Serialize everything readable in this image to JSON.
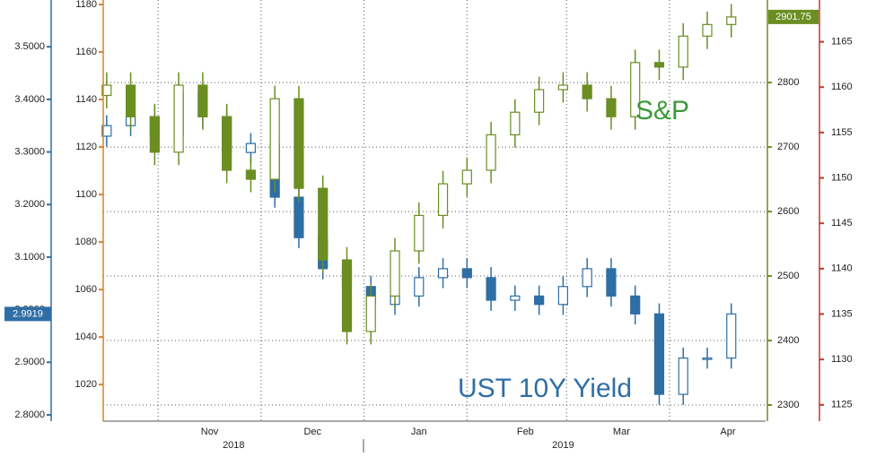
{
  "chart_data": {
    "type": "candlestick",
    "xlim": [
      0,
      193
    ],
    "xticks": [
      {
        "value": 31,
        "label": "Nov"
      },
      {
        "value": 61,
        "label": "Dec"
      },
      {
        "value": 92,
        "label": "Jan"
      },
      {
        "value": 123,
        "label": "Feb"
      },
      {
        "value": 151,
        "label": "Mar"
      },
      {
        "value": 182,
        "label": "Apr"
      }
    ],
    "year_ticks": [
      {
        "value": 38,
        "label": "2018"
      },
      {
        "value": 134,
        "label": "2019"
      }
    ],
    "xgrid": [
      16,
      46,
      76,
      106,
      135,
      165
    ],
    "ylim": [
      2.788,
      3.589
    ],
    "yticks": [
      {
        "value": 2.8,
        "label": "2.8000"
      },
      {
        "value": 2.9,
        "label": "2.9000"
      },
      {
        "value": 3.0,
        "label": "3.0000"
      },
      {
        "value": 3.1,
        "label": "3.1000"
      },
      {
        "value": 3.2,
        "label": "3.2000"
      },
      {
        "value": 3.3,
        "label": "3.3000"
      },
      {
        "value": 3.4,
        "label": "3.4000"
      },
      {
        "value": 3.5,
        "label": "3.5000"
      }
    ],
    "y2lim": [
      2275,
      2928
    ],
    "y2ticks": [
      2300,
      2400,
      2500,
      2600,
      2700,
      2800
    ],
    "y3lim": [
      1004.6,
      1181.9
    ],
    "y3ticks": [
      1020,
      1040,
      1060,
      1080,
      1100,
      1120,
      1140,
      1160,
      1180
    ],
    "y4lim": [
      1123.2,
      1169.6
    ],
    "y4ticks": [
      1125,
      1130,
      1135,
      1140,
      1145,
      1150,
      1155,
      1160,
      1165
    ],
    "grid": true,
    "x": [
      1,
      8,
      15,
      22,
      29,
      36,
      43,
      50,
      57,
      64,
      71,
      78,
      85,
      92,
      99,
      106,
      113,
      120,
      127,
      134,
      141,
      148,
      155,
      162,
      169,
      176,
      183
    ],
    "series": [
      {
        "name": "UST 10Y Yield",
        "color": "#2f6ea5",
        "axis": "y",
        "last_value": 2.9919,
        "open": [
          3.33,
          3.35,
          3.367,
          3.333,
          3.41,
          3.367,
          3.299,
          3.316,
          3.214,
          3.137,
          3.078,
          3.044,
          3.01,
          3.026,
          3.061,
          3.078,
          3.061,
          3.018,
          3.026,
          3.01,
          3.044,
          3.078,
          3.026,
          2.992,
          2.839,
          2.908,
          2.908
        ],
        "high": [
          3.37,
          3.387,
          3.387,
          3.43,
          3.43,
          3.387,
          3.336,
          3.336,
          3.234,
          3.157,
          3.098,
          3.064,
          3.046,
          3.081,
          3.098,
          3.098,
          3.081,
          3.046,
          3.046,
          3.064,
          3.098,
          3.098,
          3.046,
          3.012,
          2.928,
          2.928,
          3.012
        ],
        "low": [
          3.31,
          3.33,
          3.313,
          3.313,
          3.347,
          3.279,
          3.279,
          3.194,
          3.117,
          3.058,
          3.024,
          2.99,
          2.99,
          3.006,
          3.041,
          3.041,
          2.998,
          2.998,
          2.99,
          2.99,
          3.024,
          3.006,
          2.972,
          2.819,
          2.819,
          2.888,
          2.888
        ],
        "close": [
          3.35,
          3.367,
          3.333,
          3.41,
          3.367,
          3.299,
          3.316,
          3.214,
          3.137,
          3.078,
          3.044,
          3.01,
          3.026,
          3.061,
          3.078,
          3.061,
          3.018,
          3.026,
          3.01,
          3.044,
          3.078,
          3.026,
          2.992,
          2.839,
          2.908,
          2.908,
          2.9919
        ]
      },
      {
        "name": "S&P",
        "color": "#6b8e23",
        "axis": "y2",
        "last_value": 2901.75,
        "open": [
          2780,
          2796,
          2747,
          2692,
          2796,
          2747,
          2664,
          2650,
          2775,
          2636,
          2525,
          2414,
          2469,
          2539,
          2594,
          2643,
          2664,
          2719,
          2754,
          2789,
          2796,
          2775,
          2747,
          2831,
          2824,
          2872,
          2890
        ],
        "high": [
          2816,
          2816,
          2767,
          2816,
          2816,
          2767,
          2684,
          2795,
          2795,
          2656,
          2545,
          2489,
          2559,
          2614,
          2663,
          2684,
          2739,
          2774,
          2809,
          2816,
          2816,
          2795,
          2851,
          2851,
          2892,
          2910,
          2921.75
        ],
        "low": [
          2760,
          2727,
          2672,
          2672,
          2727,
          2644,
          2630,
          2630,
          2616,
          2505,
          2394,
          2394,
          2449,
          2519,
          2574,
          2623,
          2644,
          2699,
          2734,
          2769,
          2755,
          2727,
          2727,
          2804,
          2804,
          2852,
          2870
        ],
        "close": [
          2796,
          2747,
          2692,
          2796,
          2747,
          2664,
          2650,
          2775,
          2636,
          2525,
          2414,
          2469,
          2539,
          2594,
          2643,
          2664,
          2719,
          2754,
          2789,
          2796,
          2775,
          2747,
          2831,
          2824,
          2872,
          2890,
          2901.75
        ]
      }
    ],
    "axis_colors": {
      "y": "#2f6ea5",
      "y2": "#6b8e23",
      "y3": "#d9822b",
      "y4": "#c0392b"
    }
  }
}
